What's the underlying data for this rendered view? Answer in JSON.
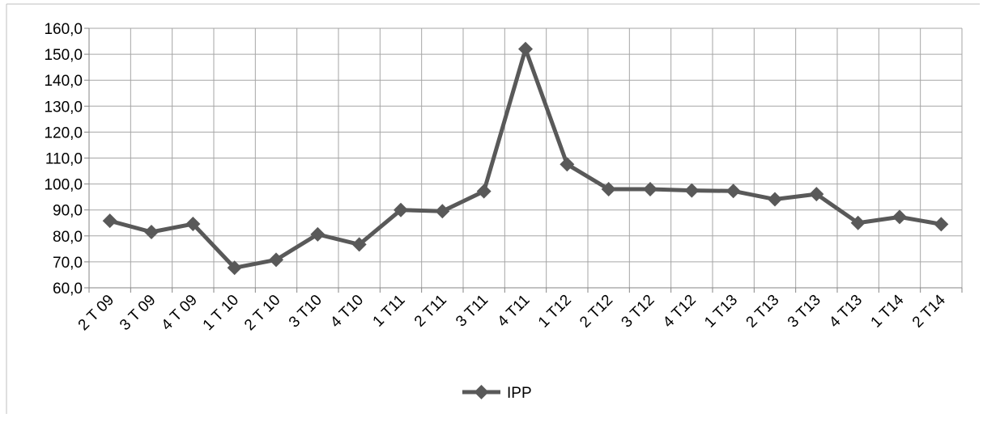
{
  "chart_data": {
    "type": "line",
    "title": "",
    "xlabel": "",
    "ylabel": "",
    "categories": [
      "2 T 09",
      "3 T 09",
      "4 T 09",
      "1 T 10",
      "2 T 10",
      "3 T10",
      "4 T10",
      "1 T11",
      "2 T11",
      "3 T11",
      "4 T11",
      "1 T12",
      "2 T12",
      "3 T12",
      "4 T12",
      "1 T13",
      "2 T13",
      "3 T13",
      "4 T13",
      "1 T14",
      "2 T14"
    ],
    "series": [
      {
        "name": "IPP",
        "color": "#595959",
        "values": [
          85.8,
          81.5,
          84.6,
          67.7,
          70.8,
          80.6,
          76.7,
          90.0,
          89.5,
          97.2,
          152.0,
          107.6,
          98.0,
          98.0,
          97.5,
          97.3,
          94.1,
          96.1,
          85.0,
          87.3,
          84.5
        ]
      }
    ],
    "ylim": [
      60,
      160
    ],
    "y_ticks": [
      "60,0",
      "70,0",
      "80,0",
      "90,0",
      "100,0",
      "110,0",
      "120,0",
      "130,0",
      "140,0",
      "150,0",
      "160,0"
    ],
    "grid": true,
    "legend_position": "bottom",
    "marker": "diamond"
  }
}
